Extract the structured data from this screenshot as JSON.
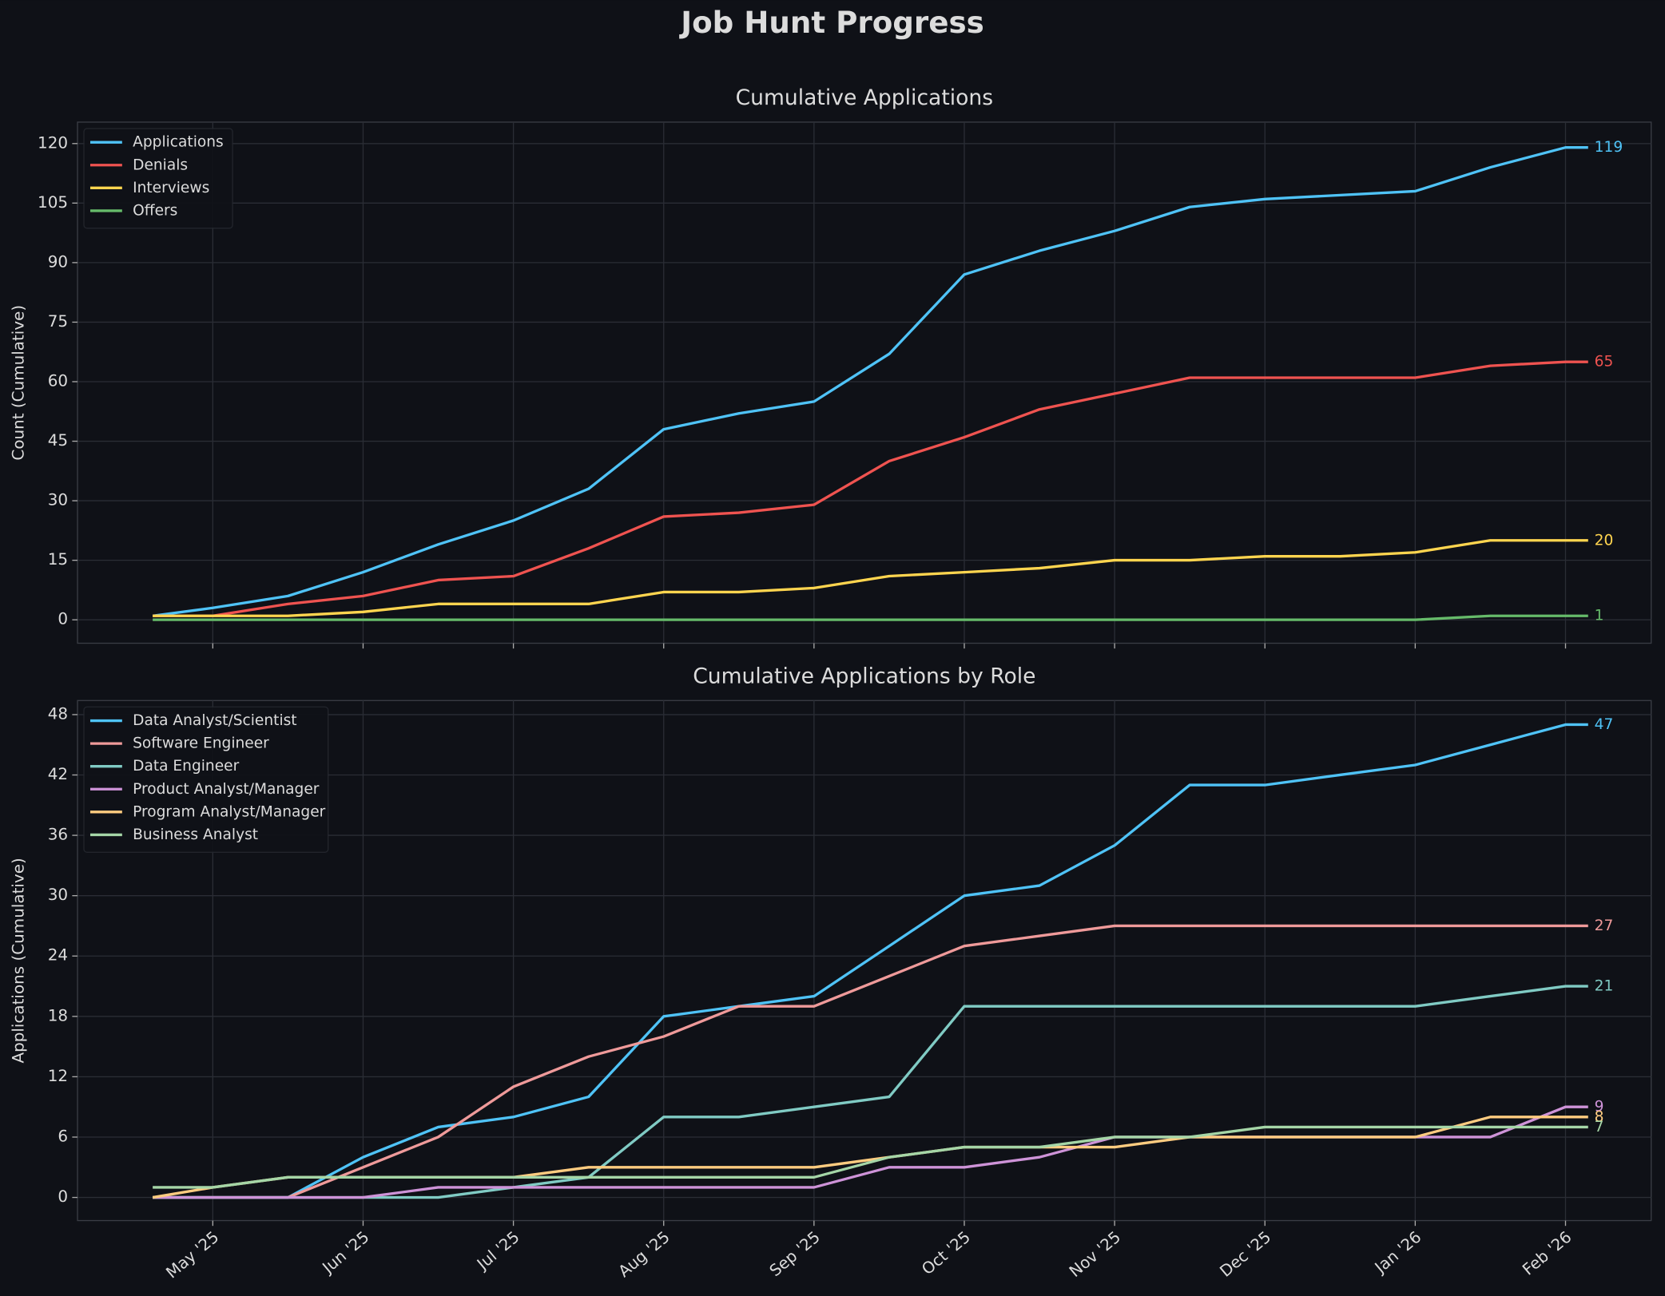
{
  "title": "Job Hunt Progress",
  "chart_data": [
    {
      "type": "line",
      "title": "Cumulative Applications",
      "y_label": "Count (Cumulative)",
      "x": [
        4.6,
        5.0,
        5.5,
        6.0,
        6.5,
        7.0,
        7.5,
        8.0,
        8.5,
        9.0,
        9.5,
        10.0,
        10.5,
        11.0,
        11.5,
        12.0,
        12.5,
        13.0,
        13.5,
        14.0,
        14.15
      ],
      "xlim": [
        4.1,
        14.57
      ],
      "xticks": [
        5,
        6,
        7,
        8,
        9,
        10,
        11,
        12,
        13,
        14
      ],
      "ylim": [
        -5.9,
        125.4
      ],
      "yticks": [
        0,
        15,
        30,
        45,
        60,
        75,
        90,
        105,
        120
      ],
      "grid": true,
      "legend": "upper left",
      "end_labels": true,
      "series": [
        {
          "name": "Applications",
          "color": "#4fc3f7",
          "values": [
            1,
            3,
            6,
            12,
            19,
            25,
            33,
            48,
            52,
            55,
            67,
            87,
            93,
            98,
            104,
            106,
            107,
            108,
            114,
            119,
            119
          ]
        },
        {
          "name": "Denials",
          "color": "#ef5350",
          "values": [
            1,
            1,
            4,
            6,
            10,
            11,
            18,
            26,
            27,
            29,
            40,
            46,
            53,
            57,
            61,
            61,
            61,
            61,
            64,
            65,
            65
          ]
        },
        {
          "name": "Interviews",
          "color": "#ffd54f",
          "values": [
            1,
            1,
            1,
            2,
            4,
            4,
            4,
            7,
            7,
            8,
            11,
            12,
            13,
            15,
            15,
            16,
            16,
            17,
            20,
            20,
            20
          ]
        },
        {
          "name": "Offers",
          "color": "#66bb6a",
          "values": [
            0,
            0,
            0,
            0,
            0,
            0,
            0,
            0,
            0,
            0,
            0,
            0,
            0,
            0,
            0,
            0,
            0,
            0,
            1,
            1,
            1
          ]
        }
      ]
    },
    {
      "type": "line",
      "title": "Cumulative Applications by Role",
      "y_label": "Applications (Cumulative)",
      "x": [
        4.6,
        5.0,
        5.5,
        6.0,
        6.5,
        7.0,
        7.5,
        8.0,
        8.5,
        9.0,
        9.5,
        10.0,
        10.5,
        11.0,
        11.5,
        12.0,
        12.5,
        13.0,
        13.5,
        14.0,
        14.15
      ],
      "xlim": [
        4.1,
        14.57
      ],
      "xticks": [
        {
          "value": 5,
          "label": "May '25"
        },
        {
          "value": 6,
          "label": "Jun '25"
        },
        {
          "value": 7,
          "label": "Jul '25"
        },
        {
          "value": 8,
          "label": "Aug '25"
        },
        {
          "value": 9,
          "label": "Sep '25"
        },
        {
          "value": 10,
          "label": "Oct '25"
        },
        {
          "value": 11,
          "label": "Nov '25"
        },
        {
          "value": 12,
          "label": "Dec '25"
        },
        {
          "value": 13,
          "label": "Jan '26"
        },
        {
          "value": 14,
          "label": "Feb '26"
        }
      ],
      "ylim": [
        -2.3,
        49.4
      ],
      "yticks": [
        0,
        6,
        12,
        18,
        24,
        30,
        36,
        42,
        48
      ],
      "grid": true,
      "legend": "upper left",
      "end_labels": true,
      "series": [
        {
          "name": "Data Analyst/Scientist",
          "color": "#4fc3f7",
          "values": [
            0,
            0,
            0,
            4,
            7,
            8,
            10,
            18,
            19,
            20,
            25,
            30,
            31,
            35,
            41,
            41,
            42,
            43,
            45,
            47,
            47
          ]
        },
        {
          "name": "Software Engineer",
          "color": "#ef9a9a",
          "values": [
            0,
            0,
            0,
            3,
            6,
            11,
            14,
            16,
            19,
            19,
            22,
            25,
            26,
            27,
            27,
            27,
            27,
            27,
            27,
            27,
            27
          ]
        },
        {
          "name": "Data Engineer",
          "color": "#80cbc4",
          "values": [
            0,
            0,
            0,
            0,
            0,
            1,
            2,
            8,
            8,
            9,
            10,
            19,
            19,
            19,
            19,
            19,
            19,
            19,
            20,
            21,
            21
          ]
        },
        {
          "name": "Product Analyst/Manager",
          "color": "#ce93d8",
          "values": [
            0,
            0,
            0,
            0,
            1,
            1,
            1,
            1,
            1,
            1,
            3,
            3,
            4,
            6,
            6,
            6,
            6,
            6,
            6,
            9,
            9
          ]
        },
        {
          "name": "Program Analyst/Manager",
          "color": "#ffcc80",
          "values": [
            0,
            1,
            2,
            2,
            2,
            2,
            3,
            3,
            3,
            3,
            4,
            5,
            5,
            5,
            6,
            6,
            6,
            6,
            8,
            8,
            8
          ]
        },
        {
          "name": "Business Analyst",
          "color": "#a5d6a7",
          "values": [
            1,
            1,
            2,
            2,
            2,
            2,
            2,
            2,
            2,
            2,
            4,
            5,
            5,
            6,
            6,
            7,
            7,
            7,
            7,
            7,
            7
          ]
        }
      ]
    }
  ]
}
